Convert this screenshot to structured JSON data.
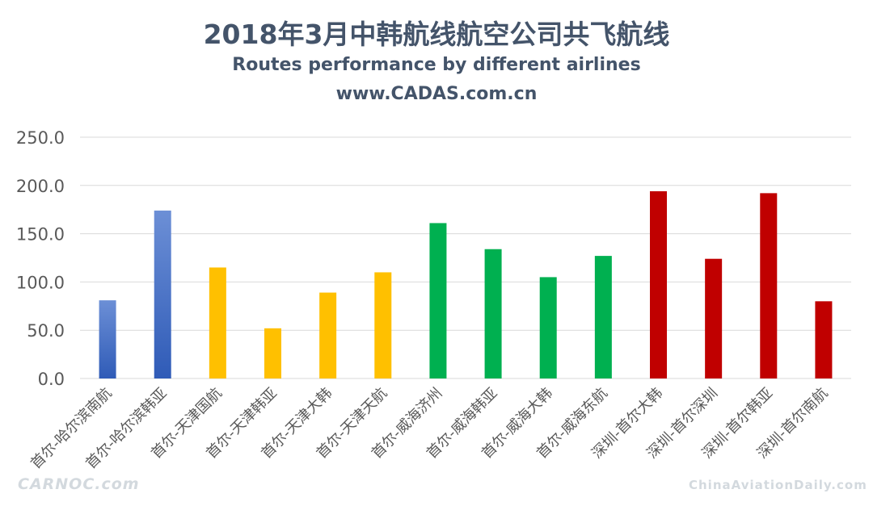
{
  "header": {
    "title": "2018年3月中韩航线航空公司共飞航线",
    "subtitle": "Routes performance by different airlines",
    "site": "www.CADAS.com.cn"
  },
  "watermarks": {
    "left": "CARNOC.com",
    "right": "ChinaAviationDaily.com"
  },
  "chart_data": {
    "type": "bar",
    "title": "2018年3月中韩航线航空公司共飞航线",
    "subtitle": "Routes performance by different airlines",
    "xlabel": "",
    "ylabel": "",
    "ylim": [
      0,
      250
    ],
    "yticks": [
      "0.0",
      "50.0",
      "100.0",
      "150.0",
      "200.0",
      "250.0"
    ],
    "grid": true,
    "legend": "none",
    "categories": [
      "首尔-哈尔滨南航",
      "首尔-哈尔滨韩亚",
      "首尔-天津国航",
      "首尔-天津韩亚",
      "首尔-天津大韩",
      "首尔-天津天航",
      "首尔-威海济州",
      "首尔-威海韩亚",
      "首尔-威海大韩",
      "首尔-威海东航",
      "深圳-首尔大韩",
      "深圳-首尔深圳",
      "深圳-首尔韩亚",
      "深圳-首尔南航"
    ],
    "values": [
      81,
      174,
      115,
      52,
      89,
      110,
      161,
      134,
      105,
      127,
      194,
      124,
      192,
      80
    ],
    "colors": [
      "#4472c4",
      "#4472c4",
      "#ffc000",
      "#ffc000",
      "#ffc000",
      "#ffc000",
      "#00b050",
      "#00b050",
      "#00b050",
      "#00b050",
      "#c00000",
      "#c00000",
      "#c00000",
      "#c00000"
    ],
    "axis_color": "#d9d9d9",
    "tick_color": "#595959"
  }
}
